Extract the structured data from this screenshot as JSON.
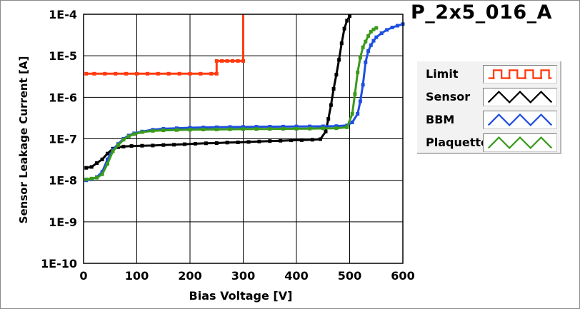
{
  "chart_data": {
    "type": "line",
    "title": "P_2x5_016_A",
    "xlabel": "Bias Voltage [V]",
    "ylabel": "Sensor Leakage Current [A]",
    "xlim": [
      0,
      600
    ],
    "ylim": [
      1e-10,
      0.0001
    ],
    "yscale": "log",
    "grid": true,
    "legend_position": "right",
    "x_ticks": [
      0,
      100,
      200,
      300,
      400,
      500,
      600
    ],
    "x_tick_labels": [
      "0",
      "100",
      "200",
      "300",
      "400",
      "500",
      "600"
    ],
    "y_ticks": [
      1e-10,
      1e-09,
      1e-08,
      1e-07,
      1e-06,
      1e-05,
      0.0001
    ],
    "y_tick_labels": [
      "1E-10",
      "1E-9",
      "1E-8",
      "1E-7",
      "1E-6",
      "1E-5",
      "1E-4"
    ],
    "series": [
      {
        "name": "Limit",
        "color": "#ff3b0f",
        "step": true,
        "points": [
          [
            5,
            3.7e-06
          ],
          [
            20,
            3.7e-06
          ],
          [
            40,
            3.7e-06
          ],
          [
            60,
            3.7e-06
          ],
          [
            80,
            3.7e-06
          ],
          [
            100,
            3.7e-06
          ],
          [
            120,
            3.7e-06
          ],
          [
            140,
            3.7e-06
          ],
          [
            160,
            3.7e-06
          ],
          [
            180,
            3.7e-06
          ],
          [
            200,
            3.7e-06
          ],
          [
            220,
            3.7e-06
          ],
          [
            240,
            3.7e-06
          ],
          [
            250,
            3.7e-06
          ],
          [
            250,
            7.5e-06
          ],
          [
            260,
            7.5e-06
          ],
          [
            270,
            7.5e-06
          ],
          [
            280,
            7.5e-06
          ],
          [
            290,
            7.5e-06
          ],
          [
            300,
            7.5e-06
          ],
          [
            300,
            0.0001
          ]
        ]
      },
      {
        "name": "Sensor",
        "color": "#000000",
        "points": [
          [
            5,
            2e-08
          ],
          [
            15,
            2.1e-08
          ],
          [
            25,
            2.6e-08
          ],
          [
            35,
            3.2e-08
          ],
          [
            45,
            4.4e-08
          ],
          [
            55,
            5.8e-08
          ],
          [
            65,
            6.3e-08
          ],
          [
            75,
            6.5e-08
          ],
          [
            90,
            6.7e-08
          ],
          [
            110,
            6.8e-08
          ],
          [
            130,
            6.9e-08
          ],
          [
            150,
            7.1e-08
          ],
          [
            170,
            7.2e-08
          ],
          [
            190,
            7.4e-08
          ],
          [
            210,
            7.6e-08
          ],
          [
            230,
            7.8e-08
          ],
          [
            250,
            7.9e-08
          ],
          [
            270,
            8.1e-08
          ],
          [
            290,
            8.2e-08
          ],
          [
            310,
            8.4e-08
          ],
          [
            330,
            8.6e-08
          ],
          [
            350,
            8.8e-08
          ],
          [
            370,
            9e-08
          ],
          [
            390,
            9.2e-08
          ],
          [
            410,
            9.3e-08
          ],
          [
            430,
            9.5e-08
          ],
          [
            445,
            9.8e-08
          ],
          [
            455,
            1.5e-07
          ],
          [
            460,
            3e-07
          ],
          [
            465,
            6.5e-07
          ],
          [
            470,
            1.6e-06
          ],
          [
            475,
            3.5e-06
          ],
          [
            480,
            8e-06
          ],
          [
            485,
            2e-05
          ],
          [
            490,
            4.5e-05
          ],
          [
            495,
            7e-05
          ],
          [
            500,
            9e-05
          ]
        ]
      },
      {
        "name": "BBM",
        "color": "#1f4fe0",
        "points": [
          [
            5,
            1e-08
          ],
          [
            15,
            1.05e-08
          ],
          [
            25,
            1.2e-08
          ],
          [
            35,
            1.6e-08
          ],
          [
            45,
            3.2e-08
          ],
          [
            55,
            5.5e-08
          ],
          [
            65,
            7.5e-08
          ],
          [
            75,
            1e-07
          ],
          [
            85,
            1.2e-07
          ],
          [
            95,
            1.35e-07
          ],
          [
            110,
            1.5e-07
          ],
          [
            130,
            1.65e-07
          ],
          [
            150,
            1.75e-07
          ],
          [
            175,
            1.8e-07
          ],
          [
            200,
            1.85e-07
          ],
          [
            225,
            1.88e-07
          ],
          [
            250,
            1.9e-07
          ],
          [
            275,
            1.92e-07
          ],
          [
            300,
            1.93e-07
          ],
          [
            325,
            1.95e-07
          ],
          [
            350,
            1.96e-07
          ],
          [
            375,
            1.97e-07
          ],
          [
            400,
            1.98e-07
          ],
          [
            425,
            1.99e-07
          ],
          [
            450,
            2e-07
          ],
          [
            475,
            2.02e-07
          ],
          [
            495,
            2.1e-07
          ],
          [
            505,
            2.5e-07
          ],
          [
            515,
            4e-07
          ],
          [
            520,
            8e-07
          ],
          [
            525,
            2e-06
          ],
          [
            530,
            7e-06
          ],
          [
            535,
            1.3e-05
          ],
          [
            540,
            1.8e-05
          ],
          [
            545,
            2.3e-05
          ],
          [
            550,
            2.8e-05
          ],
          [
            560,
            3.5e-05
          ],
          [
            570,
            4.2e-05
          ],
          [
            580,
            4.8e-05
          ],
          [
            590,
            5.3e-05
          ],
          [
            600,
            5.8e-05
          ]
        ]
      },
      {
        "name": "Plaquette",
        "color": "#3a9a1c",
        "points": [
          [
            5,
            1.05e-08
          ],
          [
            15,
            1.1e-08
          ],
          [
            25,
            1.15e-08
          ],
          [
            35,
            1.4e-08
          ],
          [
            45,
            2.5e-08
          ],
          [
            55,
            5e-08
          ],
          [
            65,
            7e-08
          ],
          [
            75,
            9.5e-08
          ],
          [
            85,
            1.15e-07
          ],
          [
            95,
            1.3e-07
          ],
          [
            110,
            1.45e-07
          ],
          [
            130,
            1.55e-07
          ],
          [
            150,
            1.6e-07
          ],
          [
            175,
            1.63e-07
          ],
          [
            200,
            1.65e-07
          ],
          [
            225,
            1.67e-07
          ],
          [
            250,
            1.68e-07
          ],
          [
            275,
            1.7e-07
          ],
          [
            300,
            1.71e-07
          ],
          [
            325,
            1.72e-07
          ],
          [
            350,
            1.73e-07
          ],
          [
            375,
            1.74e-07
          ],
          [
            400,
            1.75e-07
          ],
          [
            425,
            1.76e-07
          ],
          [
            450,
            1.78e-07
          ],
          [
            475,
            1.8e-07
          ],
          [
            495,
            1.9e-07
          ],
          [
            505,
            4e-07
          ],
          [
            510,
            1.2e-06
          ],
          [
            515,
            4e-06
          ],
          [
            520,
            9e-06
          ],
          [
            525,
            1.6e-05
          ],
          [
            530,
            2.2e-05
          ],
          [
            535,
            3e-05
          ],
          [
            540,
            3.8e-05
          ],
          [
            545,
            4.3e-05
          ],
          [
            550,
            4.7e-05
          ]
        ]
      }
    ]
  }
}
